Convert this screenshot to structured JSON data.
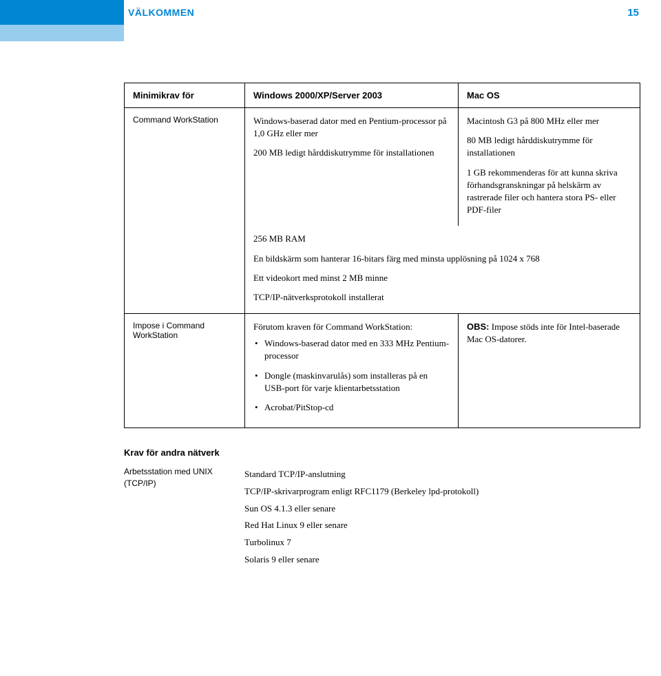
{
  "header": {
    "title": "VÄLKOMMEN",
    "page": "15"
  },
  "table": {
    "head": {
      "c1": "Minimikrav för",
      "c2": "Windows 2000/XP/Server 2003",
      "c3": "Mac OS"
    },
    "r1": {
      "label": "Command WorkStation",
      "win_a": "Windows-baserad dator med en Pentium-processor på 1,0 GHz eller mer",
      "win_b": "200 MB ledigt hårddiskutrymme för installationen",
      "mac_a": "Macintosh G3 på 800 MHz eller mer",
      "mac_b": "80 MB ledigt hårddiskutrymme för installationen",
      "mac_c": "1 GB rekommenderas för att kunna skriva förhandsgranskningar på helskärm av rastrerade filer och hantera stora PS- eller PDF-filer"
    },
    "r2": {
      "a": "256 MB RAM",
      "b": "En bildskärm som hanterar 16-bitars färg med minsta upplösning på 1024 x 768",
      "c": "Ett videokort med minst 2 MB minne",
      "d": "TCP/IP-nätverksprotokoll installerat"
    },
    "r3": {
      "label": "Impose i Command WorkStation",
      "win_intro": "Förutom kraven för Command WorkStation:",
      "b1": "Windows-baserad dator med en 333 MHz Pentium-processor",
      "b2": "Dongle (maskinvarulås) som installeras på en USB-port för varje klientarbetsstation",
      "b3": "Acrobat/PitStop-cd",
      "mac_note_pre": "OBS:",
      "mac_note": " Impose stöds inte för Intel-baserade Mac OS-datorer."
    }
  },
  "other": {
    "heading": "Krav för andra nätverk",
    "label": "Arbetsstation med UNIX (TCP/IP)",
    "l1": "Standard TCP/IP-anslutning",
    "l2": "TCP/IP-skrivarprogram enligt RFC1179 (Berkeley lpd-protokoll)",
    "l3": "Sun OS 4.1.3 eller senare",
    "l4": "Red Hat Linux 9 eller senare",
    "l5": "Turbolinux 7",
    "l6": "Solaris 9 eller senare"
  }
}
